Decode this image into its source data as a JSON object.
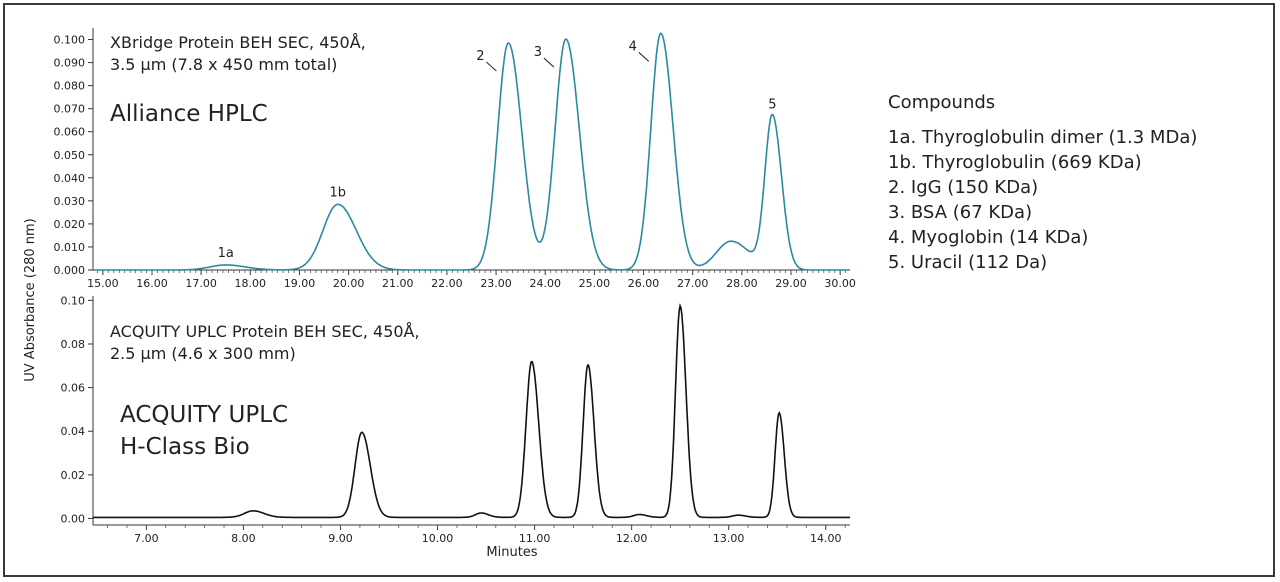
{
  "chart_data": [
    {
      "type": "line",
      "panel": "top",
      "annotation_lines": [
        "XBridge Protein BEH SEC, 450Å,",
        "3.5 µm  (7.8 x 450 mm total)"
      ],
      "system_lines": [
        "Alliance HPLC"
      ],
      "line_color": "#2a8aa0",
      "xlim": [
        14.8,
        30.2
      ],
      "ylim": [
        0,
        0.105
      ],
      "x_ticks": [
        15,
        16,
        17,
        18,
        19,
        20,
        21,
        22,
        23,
        24,
        25,
        26,
        27,
        28,
        29,
        30
      ],
      "x_tick_labels": [
        "15.00",
        "16.00",
        "17.00",
        "18.00",
        "19.00",
        "20.00",
        "21.00",
        "22.00",
        "23.00",
        "24.00",
        "25.00",
        "26.00",
        "27.00",
        "28.00",
        "29.00",
        "30.00"
      ],
      "y_ticks": [
        0,
        0.01,
        0.02,
        0.03,
        0.04,
        0.05,
        0.06,
        0.07,
        0.08,
        0.09,
        0.1
      ],
      "y_tick_labels": [
        "0.000",
        "0.010",
        "0.020",
        "0.030",
        "0.040",
        "0.050",
        "0.060",
        "0.070",
        "0.080",
        "0.090",
        "0.100"
      ],
      "baseline": 0.0,
      "peaks": [
        {
          "label": "1a",
          "x": 17.5,
          "y": 0.0022
        },
        {
          "label": "1b",
          "x": 19.78,
          "y": 0.0285
        },
        {
          "label": "2",
          "x": 23.25,
          "y": 0.0985
        },
        {
          "label": "3",
          "x": 24.42,
          "y": 0.1002
        },
        {
          "label": "4",
          "x": 26.35,
          "y": 0.1027
        },
        {
          "label": "",
          "x": 27.78,
          "y": 0.0125
        },
        {
          "label": "5",
          "x": 28.62,
          "y": 0.0665
        }
      ]
    },
    {
      "type": "line",
      "panel": "bottom",
      "annotation_lines": [
        "ACQUITY UPLC Protein BEH SEC, 450Å,",
        "2.5 µm (4.6 x 300 mm)"
      ],
      "system_lines": [
        "ACQUITY UPLC",
        "H-Class Bio"
      ],
      "line_color": "#111111",
      "xlim": [
        6.45,
        14.25
      ],
      "ylim": [
        -0.003,
        0.102
      ],
      "x_ticks": [
        7,
        8,
        9,
        10,
        11,
        12,
        13,
        14
      ],
      "x_tick_labels": [
        "7.00",
        "8.00",
        "9.00",
        "10.00",
        "11.00",
        "12.00",
        "13.00",
        "14.00"
      ],
      "y_ticks": [
        0,
        0.02,
        0.04,
        0.06,
        0.08,
        0.1
      ],
      "y_tick_labels": [
        "0.00",
        "0.02",
        "0.04",
        "0.06",
        "0.08",
        "0.10"
      ],
      "baseline": 0.0005,
      "peaks": [
        {
          "x": 8.1,
          "y": 0.0035
        },
        {
          "x": 9.22,
          "y": 0.0395
        },
        {
          "x": 10.45,
          "y": 0.0025
        },
        {
          "x": 10.97,
          "y": 0.072
        },
        {
          "x": 11.55,
          "y": 0.0705
        },
        {
          "x": 12.08,
          "y": 0.0018
        },
        {
          "x": 12.5,
          "y": 0.0975
        },
        {
          "x": 13.1,
          "y": 0.0015
        },
        {
          "x": 13.52,
          "y": 0.0485
        }
      ]
    }
  ],
  "ylabel": "UV Absorbance (280 nm)",
  "xlabel": "Minutes",
  "legend": {
    "heading": "Compounds",
    "items": [
      "1a. Thyroglobulin dimer (1.3 MDa)",
      "1b. Thyroglobulin (669 KDa)",
      "2. IgG (150 KDa)",
      "3. BSA (67 KDa)",
      "4. Myoglobin (14 KDa)",
      "5. Uracil (112 Da)"
    ]
  }
}
